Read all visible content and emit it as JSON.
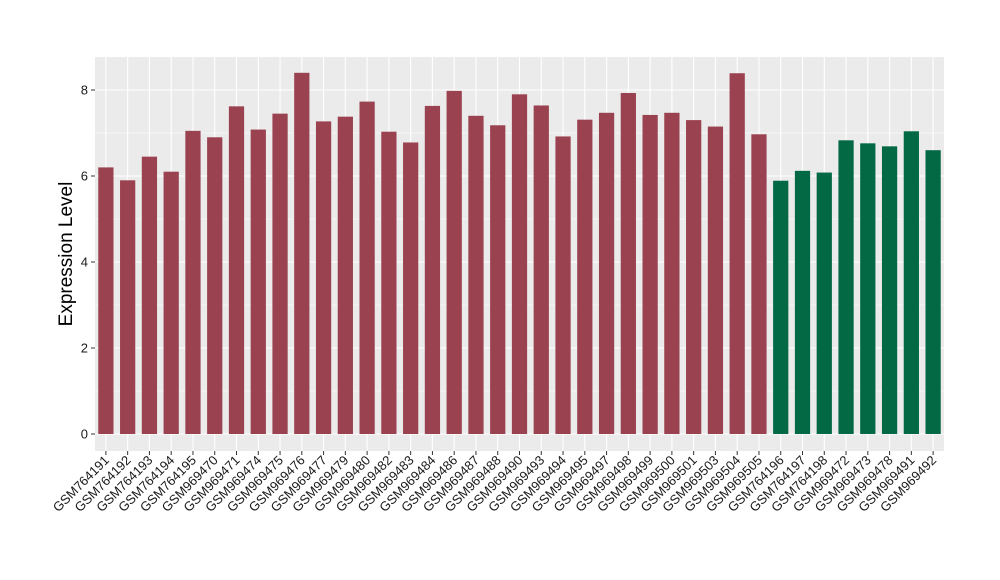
{
  "chart_data": {
    "type": "bar",
    "title": "",
    "xlabel": "",
    "ylabel": "Expression Level",
    "ylim": [
      0,
      8.8
    ],
    "yticks": [
      0,
      2,
      4,
      6,
      8
    ],
    "grid": true,
    "legend": "none",
    "colors": {
      "group1": "#9A4250",
      "group2": "#036945",
      "panel": "#EBEBEB",
      "grid": "#FFFFFF"
    },
    "categories": [
      "GSM764191",
      "GSM764192",
      "GSM764193",
      "GSM764194",
      "GSM764195",
      "GSM969470",
      "GSM969471",
      "GSM969474",
      "GSM969475",
      "GSM969476",
      "GSM969477",
      "GSM969479",
      "GSM969480",
      "GSM969482",
      "GSM969483",
      "GSM969484",
      "GSM969486",
      "GSM969487",
      "GSM969488",
      "GSM969490",
      "GSM969493",
      "GSM969494",
      "GSM969495",
      "GSM969497",
      "GSM969498",
      "GSM969499",
      "GSM969500",
      "GSM969501",
      "GSM969503",
      "GSM969504",
      "GSM969505",
      "GSM764196",
      "GSM764197",
      "GSM764198",
      "GSM969472",
      "GSM969473",
      "GSM969478",
      "GSM969491",
      "GSM969492"
    ],
    "values": [
      6.2,
      5.9,
      6.45,
      6.1,
      7.05,
      6.9,
      7.62,
      7.08,
      7.45,
      8.4,
      7.27,
      7.38,
      7.73,
      7.03,
      6.78,
      7.63,
      7.98,
      7.4,
      7.18,
      7.9,
      7.64,
      6.92,
      7.31,
      7.47,
      7.93,
      7.42,
      7.47,
      7.3,
      7.15,
      8.39,
      6.97,
      5.89,
      6.12,
      6.08,
      6.83,
      6.76,
      6.69,
      7.04,
      6.6
    ],
    "groups": [
      "group1",
      "group1",
      "group1",
      "group1",
      "group1",
      "group1",
      "group1",
      "group1",
      "group1",
      "group1",
      "group1",
      "group1",
      "group1",
      "group1",
      "group1",
      "group1",
      "group1",
      "group1",
      "group1",
      "group1",
      "group1",
      "group1",
      "group1",
      "group1",
      "group1",
      "group1",
      "group1",
      "group1",
      "group1",
      "group1",
      "group1",
      "group2",
      "group2",
      "group2",
      "group2",
      "group2",
      "group2",
      "group2",
      "group2"
    ]
  }
}
